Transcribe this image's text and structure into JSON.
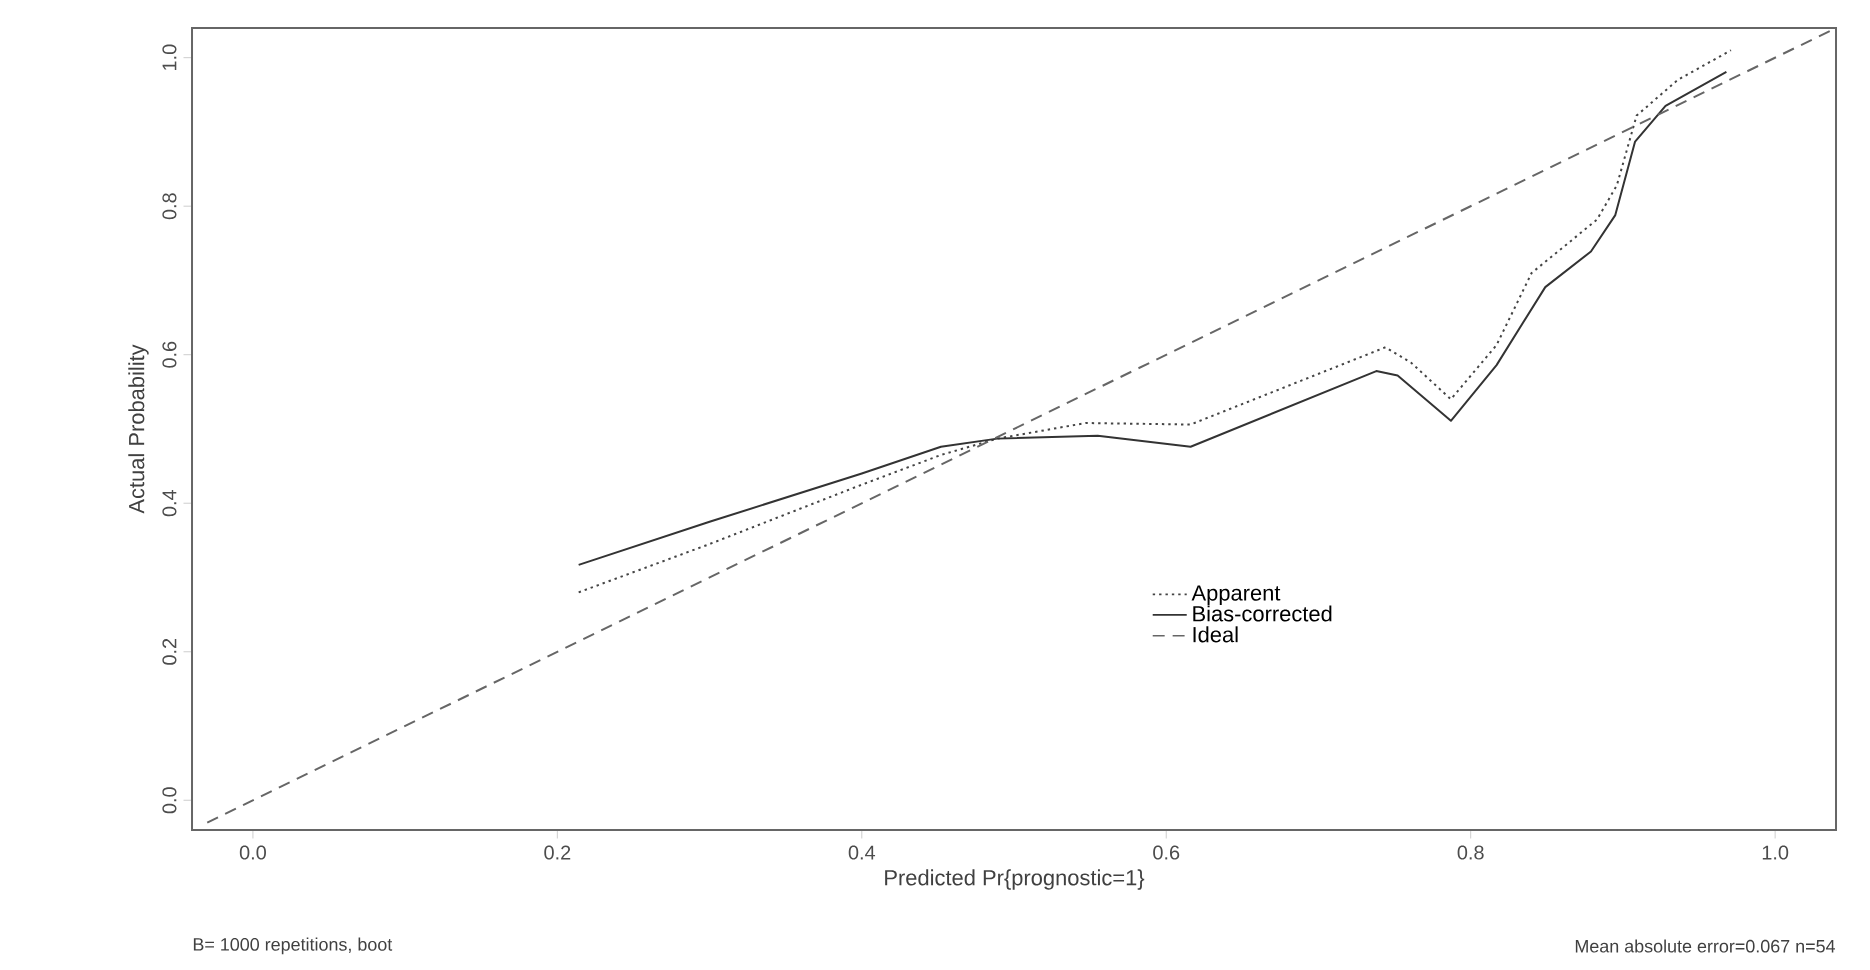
{
  "chart_data": {
    "type": "line",
    "xlabel": "Predicted Pr{prognostic=1}",
    "ylabel": "Actual Probability",
    "annotations": [
      "B= 1000 repetitions, boot",
      "Mean absolute error=0.067 n=54"
    ],
    "xlim": [
      -0.04,
      1.04
    ],
    "ylim": [
      -0.04,
      1.04
    ],
    "xticks": [
      {
        "value": 0,
        "label": "0.0"
      },
      0.2,
      0.4,
      0.6,
      0.8,
      {
        "value": 1,
        "label": "1.0"
      }
    ],
    "yticks": [
      {
        "value": 0,
        "label": "0.0"
      },
      0.2,
      0.4,
      0.6,
      0.8,
      {
        "value": 1,
        "label": "1.0"
      }
    ],
    "legend": "bottom right",
    "series": [
      {
        "name": "Apparent",
        "color": "#444444",
        "line_style": "dotted",
        "x": [
          0.214,
          0.3,
          0.4,
          0.452,
          0.489,
          0.547,
          0.616,
          0.744,
          0.761,
          0.787,
          0.817,
          0.84,
          0.883,
          0.896,
          0.909,
          0.936,
          0.971
        ],
        "values": [
          0.28,
          0.345,
          0.425,
          0.465,
          0.487,
          0.508,
          0.506,
          0.61,
          0.589,
          0.54,
          0.613,
          0.71,
          0.782,
          0.828,
          0.922,
          0.97,
          1.01
        ]
      },
      {
        "name": "Bias-corrected",
        "color": "#333333",
        "line_style": "solid",
        "x": [
          0.214,
          0.3,
          0.4,
          0.452,
          0.489,
          0.555,
          0.616,
          0.738,
          0.752,
          0.787,
          0.817,
          0.849,
          0.879,
          0.895,
          0.908,
          0.928,
          0.968
        ],
        "values": [
          0.317,
          0.375,
          0.44,
          0.476,
          0.487,
          0.491,
          0.476,
          0.578,
          0.572,
          0.511,
          0.586,
          0.691,
          0.739,
          0.788,
          0.887,
          0.935,
          0.981
        ]
      },
      {
        "name": "Ideal",
        "color": "#666666",
        "line_style": "dashed",
        "x": [
          -0.03,
          1.04
        ],
        "values": [
          -0.03,
          1.04
        ]
      }
    ]
  }
}
